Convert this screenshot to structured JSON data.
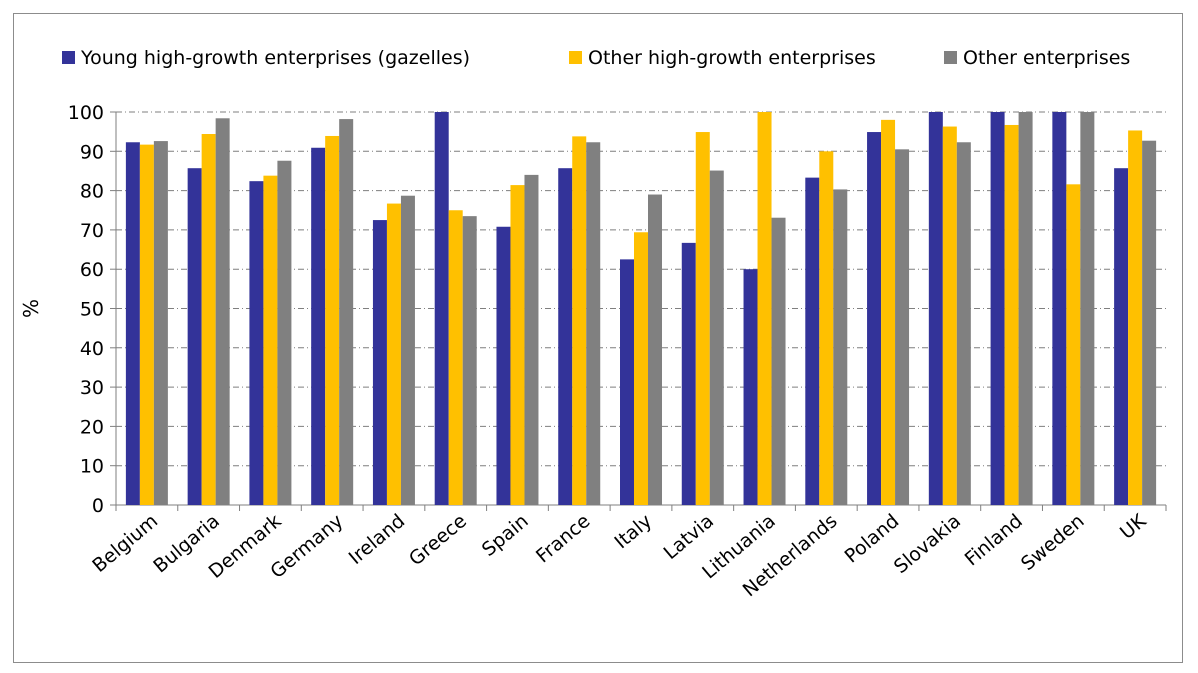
{
  "chart_data": {
    "type": "bar",
    "title": "",
    "xlabel": "",
    "ylabel": "%",
    "ylim": [
      0,
      100
    ],
    "ytick_step": 10,
    "grid": true,
    "legend_position": "top",
    "categories": [
      "Belgium",
      "Bulgaria",
      "Denmark",
      "Germany",
      "Ireland",
      "Greece",
      "Spain",
      "France",
      "Italy",
      "Latvia",
      "Lithuania",
      "Netherlands",
      "Poland",
      "Slovakia",
      "Finland",
      "Sweden",
      "UK"
    ],
    "series": [
      {
        "name": "Young high-growth enterprises (gazelles)",
        "color": "#333399",
        "values": [
          92.3,
          85.7,
          82.4,
          90.9,
          72.5,
          100,
          70.8,
          85.7,
          62.5,
          66.7,
          60.0,
          83.3,
          94.9,
          100,
          100,
          100,
          85.7
        ]
      },
      {
        "name": "Other high-growth enterprises",
        "color": "#ffc000",
        "values": [
          91.7,
          94.4,
          83.8,
          93.9,
          76.7,
          75.0,
          81.4,
          93.8,
          69.4,
          94.9,
          100,
          90.0,
          98.0,
          96.3,
          96.7,
          81.6,
          95.3
        ]
      },
      {
        "name": "Other enterprises",
        "color": "#808080",
        "values": [
          92.6,
          98.4,
          87.6,
          98.2,
          78.7,
          73.5,
          84.0,
          92.3,
          79.0,
          85.1,
          73.1,
          80.3,
          90.5,
          92.3,
          100,
          100,
          92.7
        ]
      }
    ]
  }
}
